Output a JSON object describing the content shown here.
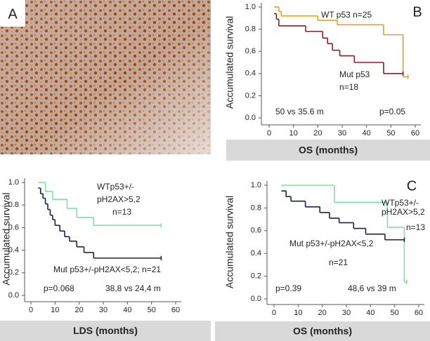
{
  "panel_a": {
    "label": "A"
  },
  "chart_data": [
    {
      "type": "step",
      "panel_label": "B",
      "xlabel": "OS (months)",
      "ylabel": "Accumulated survival",
      "xlim": [
        0,
        60
      ],
      "ylim": [
        0,
        1
      ],
      "xticks": [
        0,
        10,
        20,
        30,
        40,
        50,
        60
      ],
      "yticks": [
        {
          "value": 0,
          "label": "0.0"
        },
        0.2,
        0.4,
        0.6,
        0.8,
        {
          "value": 1,
          "label": "1.0"
        }
      ],
      "series": [
        {
          "color": "#e0a030",
          "x": [
            2,
            4,
            5,
            20,
            28,
            47,
            55,
            57
          ],
          "values": [
            1.0,
            0.96,
            0.92,
            0.88,
            0.84,
            0.75,
            0.37,
            0.37
          ]
        },
        {
          "color": "#8b1f1f",
          "x": [
            2,
            3,
            4,
            15,
            22,
            24,
            26,
            29,
            35,
            47,
            55
          ],
          "values": [
            0.94,
            0.89,
            0.83,
            0.78,
            0.72,
            0.67,
            0.61,
            0.56,
            0.5,
            0.4,
            0.4
          ]
        }
      ],
      "annotations": [
        "WT p53 n=25",
        "Mut p53",
        "n=18",
        "50 vs 35.6 m",
        "p=0.05"
      ]
    },
    {
      "type": "step",
      "xlabel": "LDS (months)",
      "ylabel": "Accumulated survival",
      "xlim": [
        0,
        60
      ],
      "ylim": [
        0,
        1
      ],
      "xticks": [
        0,
        10,
        20,
        30,
        40,
        50,
        60
      ],
      "yticks": [
        {
          "value": 0,
          "label": "0.0"
        },
        0.2,
        0.4,
        0.6,
        0.8,
        {
          "value": 1,
          "label": "1.0"
        }
      ],
      "series": [
        {
          "color": "#7ee0a0",
          "x": [
            3,
            6,
            9,
            15,
            19,
            26,
            54
          ],
          "values": [
            1.0,
            0.92,
            0.85,
            0.77,
            0.69,
            0.62,
            0.62
          ]
        },
        {
          "color": "#1c2148",
          "x": [
            3,
            4,
            5,
            6,
            7,
            8,
            9,
            10,
            12,
            14,
            16,
            19,
            22,
            26,
            54
          ],
          "values": [
            0.95,
            0.9,
            0.86,
            0.81,
            0.76,
            0.71,
            0.67,
            0.62,
            0.57,
            0.52,
            0.48,
            0.43,
            0.38,
            0.33,
            0.33
          ]
        }
      ],
      "annotations": [
        "WTp53+/-",
        "pH2AX>5,2",
        "n=13",
        "Mut p53+/-pH2AX<5,2; n=21",
        "p=0.068",
        "38,8 vs 24,4 m"
      ]
    },
    {
      "type": "step",
      "panel_label": "C",
      "xlabel": "OS (months)",
      "ylabel": "Accumulated survival",
      "xlim": [
        0,
        60
      ],
      "ylim": [
        0,
        1
      ],
      "xticks": [
        0,
        10,
        20,
        30,
        40,
        50,
        60
      ],
      "yticks": [
        {
          "value": 0,
          "label": "0.0"
        },
        0.2,
        0.4,
        0.6,
        0.8,
        {
          "value": 1,
          "label": "1.0"
        }
      ],
      "series": [
        {
          "color": "#7ee0a0",
          "x": [
            3,
            25,
            47,
            54,
            55
          ],
          "values": [
            1.0,
            0.85,
            0.63,
            0.15,
            0.15
          ]
        },
        {
          "color": "#1c2148",
          "x": [
            3,
            5,
            7,
            13,
            19,
            23,
            27,
            33,
            38,
            46,
            54
          ],
          "values": [
            0.95,
            0.9,
            0.86,
            0.81,
            0.76,
            0.71,
            0.67,
            0.62,
            0.57,
            0.52,
            0.52
          ]
        }
      ],
      "annotations": [
        "WTp53+/-",
        "pH2AX>5,2",
        "n=13",
        "Mut p53+/-pH2AX<5,2",
        "n=21",
        "p=0.39",
        "48,6 vs 39 m"
      ]
    }
  ]
}
